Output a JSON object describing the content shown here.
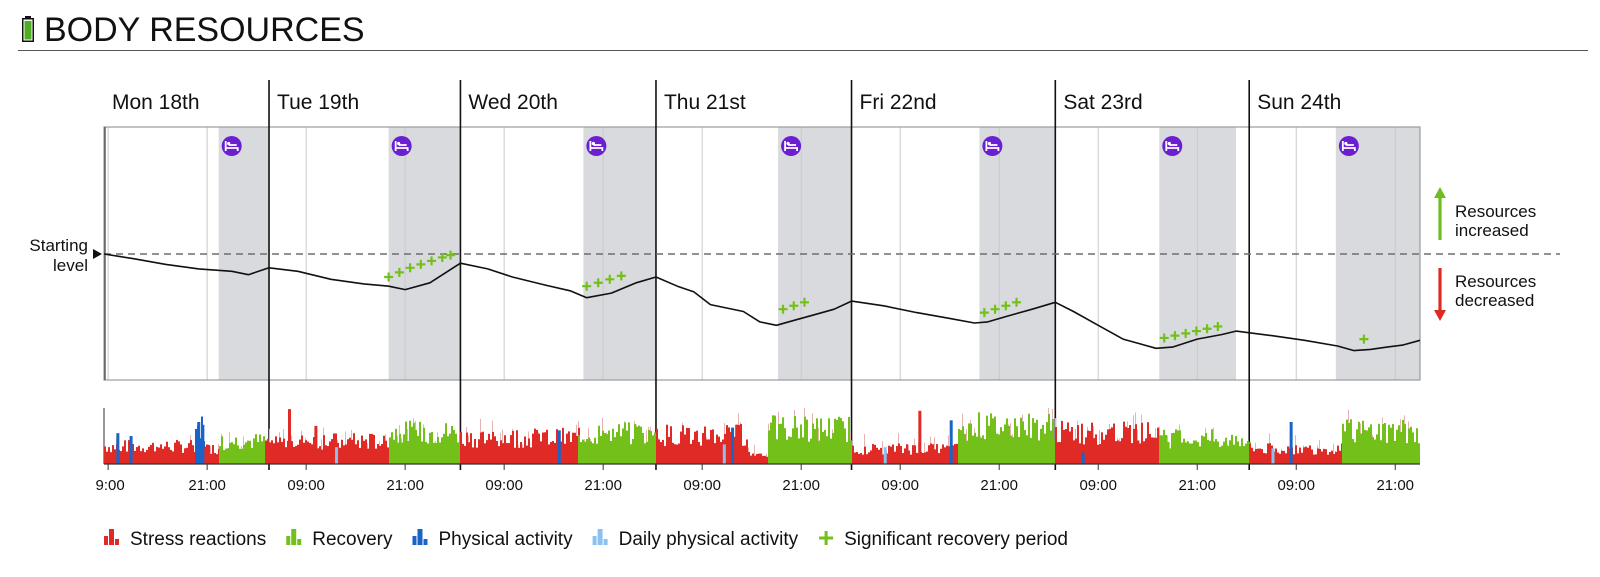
{
  "header": {
    "title": "BODY RESOURCES",
    "icon": "battery-icon"
  },
  "colors": {
    "stress": "#e02a25",
    "recovery": "#73c01a",
    "physical": "#1a64c8",
    "daily_physical": "#8cc0f0",
    "sleep_band": "#d9dadd",
    "sleep_icon": "#6a1fd0",
    "up_arrow": "#6cbf1c",
    "down_arrow": "#dd2a25"
  },
  "chart_data": {
    "type": "line",
    "title": "BODY RESOURCES",
    "x_unit": "hours since Mon 18th 00:00",
    "x_range": [
      8.5,
      168
    ],
    "y_range": [
      -100,
      100
    ],
    "starting_level": 0,
    "starting_level_label": [
      "Starting",
      "level"
    ],
    "days": [
      {
        "label": "Mon 18th",
        "start": 8.5
      },
      {
        "label": "Tue 19th",
        "start": 28.5
      },
      {
        "label": "Wed 20th",
        "start": 51.7
      },
      {
        "label": "Thu 21st",
        "start": 75.4
      },
      {
        "label": "Fri 22nd",
        "start": 99.1
      },
      {
        "label": "Sat 23rd",
        "start": 123.8
      },
      {
        "label": "Sun 24th",
        "start": 147.3
      }
    ],
    "day_boundaries": [
      28.5,
      51.7,
      75.4,
      99.1,
      123.8,
      147.3
    ],
    "sleep_periods": [
      [
        22.4,
        28.5
      ],
      [
        43.0,
        51.7
      ],
      [
        66.6,
        75.4
      ],
      [
        90.2,
        99.1
      ],
      [
        114.6,
        123.8
      ],
      [
        136.4,
        145.7
      ],
      [
        157.8,
        168.0
      ]
    ],
    "resource_line": {
      "x": [
        8.5,
        12,
        16,
        20,
        24,
        26,
        28.5,
        32,
        36,
        40,
        43,
        45,
        48,
        51.7,
        55,
        58,
        62,
        65,
        67,
        70,
        73,
        75.4,
        78,
        80,
        82,
        86,
        88,
        90,
        92,
        95,
        97,
        99.1,
        103,
        107,
        111,
        114,
        115.6,
        118,
        121,
        123.8,
        126,
        129,
        132,
        136,
        138,
        141,
        144,
        145.7,
        150,
        154,
        158,
        160,
        162,
        164,
        166,
        168
      ],
      "y": [
        0,
        -4,
        -9,
        -13,
        -15,
        -18,
        -12,
        -15,
        -22,
        -26,
        -28,
        -31,
        -25,
        -8,
        -13,
        -20,
        -27,
        -32,
        -38,
        -34,
        -25,
        -20,
        -28,
        -33,
        -44,
        -50,
        -59,
        -62,
        -58,
        -52,
        -48,
        -41,
        -45,
        -51,
        -56,
        -60,
        -59,
        -54,
        -48,
        -42,
        -50,
        -62,
        -74,
        -82,
        -81,
        -74,
        -70,
        -67,
        -71,
        -75,
        -80,
        -84,
        -83,
        -81,
        -79,
        -75
      ]
    },
    "recovery_markers": [
      [
        43.0,
        -20
      ],
      [
        44.3,
        -16
      ],
      [
        45.6,
        -12
      ],
      [
        46.9,
        -9
      ],
      [
        48.2,
        -6
      ],
      [
        49.5,
        -3
      ],
      [
        50.5,
        -1
      ],
      [
        67.0,
        -28
      ],
      [
        68.4,
        -25
      ],
      [
        69.8,
        -22
      ],
      [
        71.2,
        -19
      ],
      [
        90.8,
        -48
      ],
      [
        92.1,
        -45
      ],
      [
        93.4,
        -42
      ],
      [
        115.2,
        -51
      ],
      [
        116.5,
        -48
      ],
      [
        117.8,
        -45
      ],
      [
        119.1,
        -42
      ],
      [
        137.0,
        -73
      ],
      [
        138.3,
        -71
      ],
      [
        139.6,
        -69
      ],
      [
        140.9,
        -67
      ],
      [
        142.2,
        -65
      ],
      [
        143.5,
        -63
      ],
      [
        161.2,
        -74
      ]
    ],
    "x_ticks": [
      {
        "x": 9,
        "label": "9:00"
      },
      {
        "x": 21,
        "label": "21:00"
      },
      {
        "x": 33,
        "label": "09:00"
      },
      {
        "x": 45,
        "label": "21:00"
      },
      {
        "x": 57,
        "label": "09:00"
      },
      {
        "x": 69,
        "label": "21:00"
      },
      {
        "x": 81,
        "label": "09:00"
      },
      {
        "x": 93,
        "label": "21:00"
      },
      {
        "x": 105,
        "label": "09:00"
      },
      {
        "x": 117,
        "label": "21:00"
      },
      {
        "x": 129,
        "label": "09:00"
      },
      {
        "x": 141,
        "label": "21:00"
      },
      {
        "x": 153,
        "label": "09:00"
      },
      {
        "x": 165,
        "label": "21:00"
      }
    ],
    "activity_segments": [
      {
        "type": "stress",
        "start": 8.5,
        "end": 19.5,
        "level": 0.35
      },
      {
        "type": "physical",
        "start": 19.5,
        "end": 20.6,
        "level": 0.72
      },
      {
        "type": "stress",
        "start": 20.6,
        "end": 22.4,
        "level": 0.3
      },
      {
        "type": "recovery",
        "start": 22.4,
        "end": 28.0,
        "level": 0.45
      },
      {
        "type": "stress",
        "start": 28.0,
        "end": 43.0,
        "level": 0.45
      },
      {
        "type": "recovery",
        "start": 43.0,
        "end": 51.7,
        "level": 0.62
      },
      {
        "type": "stress",
        "start": 51.7,
        "end": 66.0,
        "level": 0.52
      },
      {
        "type": "recovery",
        "start": 66.0,
        "end": 75.4,
        "level": 0.6
      },
      {
        "type": "stress",
        "start": 75.4,
        "end": 86.5,
        "level": 0.58
      },
      {
        "type": "stress",
        "start": 86.5,
        "end": 89.0,
        "level": 0.2
      },
      {
        "type": "recovery",
        "start": 89.0,
        "end": 99.1,
        "level": 0.7
      },
      {
        "type": "stress",
        "start": 99.1,
        "end": 112.0,
        "level": 0.3
      },
      {
        "type": "recovery",
        "start": 112.0,
        "end": 123.8,
        "level": 0.75
      },
      {
        "type": "stress",
        "start": 123.8,
        "end": 136.4,
        "level": 0.62
      },
      {
        "type": "recovery",
        "start": 136.4,
        "end": 147.3,
        "level": 0.5
      },
      {
        "type": "stress",
        "start": 147.3,
        "end": 158.5,
        "level": 0.3
      },
      {
        "type": "recovery",
        "start": 158.5,
        "end": 168.0,
        "level": 0.65
      }
    ],
    "activity_spikes": [
      {
        "type": "physical",
        "x": 10.0,
        "level": 0.55
      },
      {
        "type": "physical",
        "x": 11.6,
        "level": 0.5
      },
      {
        "type": "physical",
        "x": 19.8,
        "level": 0.75
      },
      {
        "type": "physical",
        "x": 20.3,
        "level": 0.7
      },
      {
        "type": "stress",
        "x": 30.8,
        "level": 0.98
      },
      {
        "type": "stress",
        "x": 34.0,
        "level": 0.68
      },
      {
        "type": "daily_physical",
        "x": 36.5,
        "level": 0.3
      },
      {
        "type": "physical",
        "x": 63.5,
        "level": 0.6
      },
      {
        "type": "physical",
        "x": 84.5,
        "level": 0.65
      },
      {
        "type": "stress",
        "x": 85.0,
        "level": 0.7
      },
      {
        "type": "daily_physical",
        "x": 83.5,
        "level": 0.35
      },
      {
        "type": "stress",
        "x": 107.2,
        "level": 0.95
      },
      {
        "type": "physical",
        "x": 111.0,
        "level": 0.78
      },
      {
        "type": "daily_physical",
        "x": 103.0,
        "level": 0.3
      },
      {
        "type": "physical",
        "x": 127.0,
        "level": 0.2
      },
      {
        "type": "physical",
        "x": 152.2,
        "level": 0.75
      },
      {
        "type": "daily_physical",
        "x": 150.0,
        "level": 0.28
      }
    ],
    "side_labels": {
      "increased": [
        "Resources",
        "increased"
      ],
      "decreased": [
        "Resources",
        "decreased"
      ]
    },
    "legend": [
      {
        "type": "stress",
        "label": "Stress reactions"
      },
      {
        "type": "recovery",
        "label": "Recovery"
      },
      {
        "type": "physical",
        "label": "Physical activity"
      },
      {
        "type": "daily_physical",
        "label": "Daily physical activity"
      },
      {
        "type": "significant",
        "label": "Significant recovery period"
      }
    ]
  }
}
